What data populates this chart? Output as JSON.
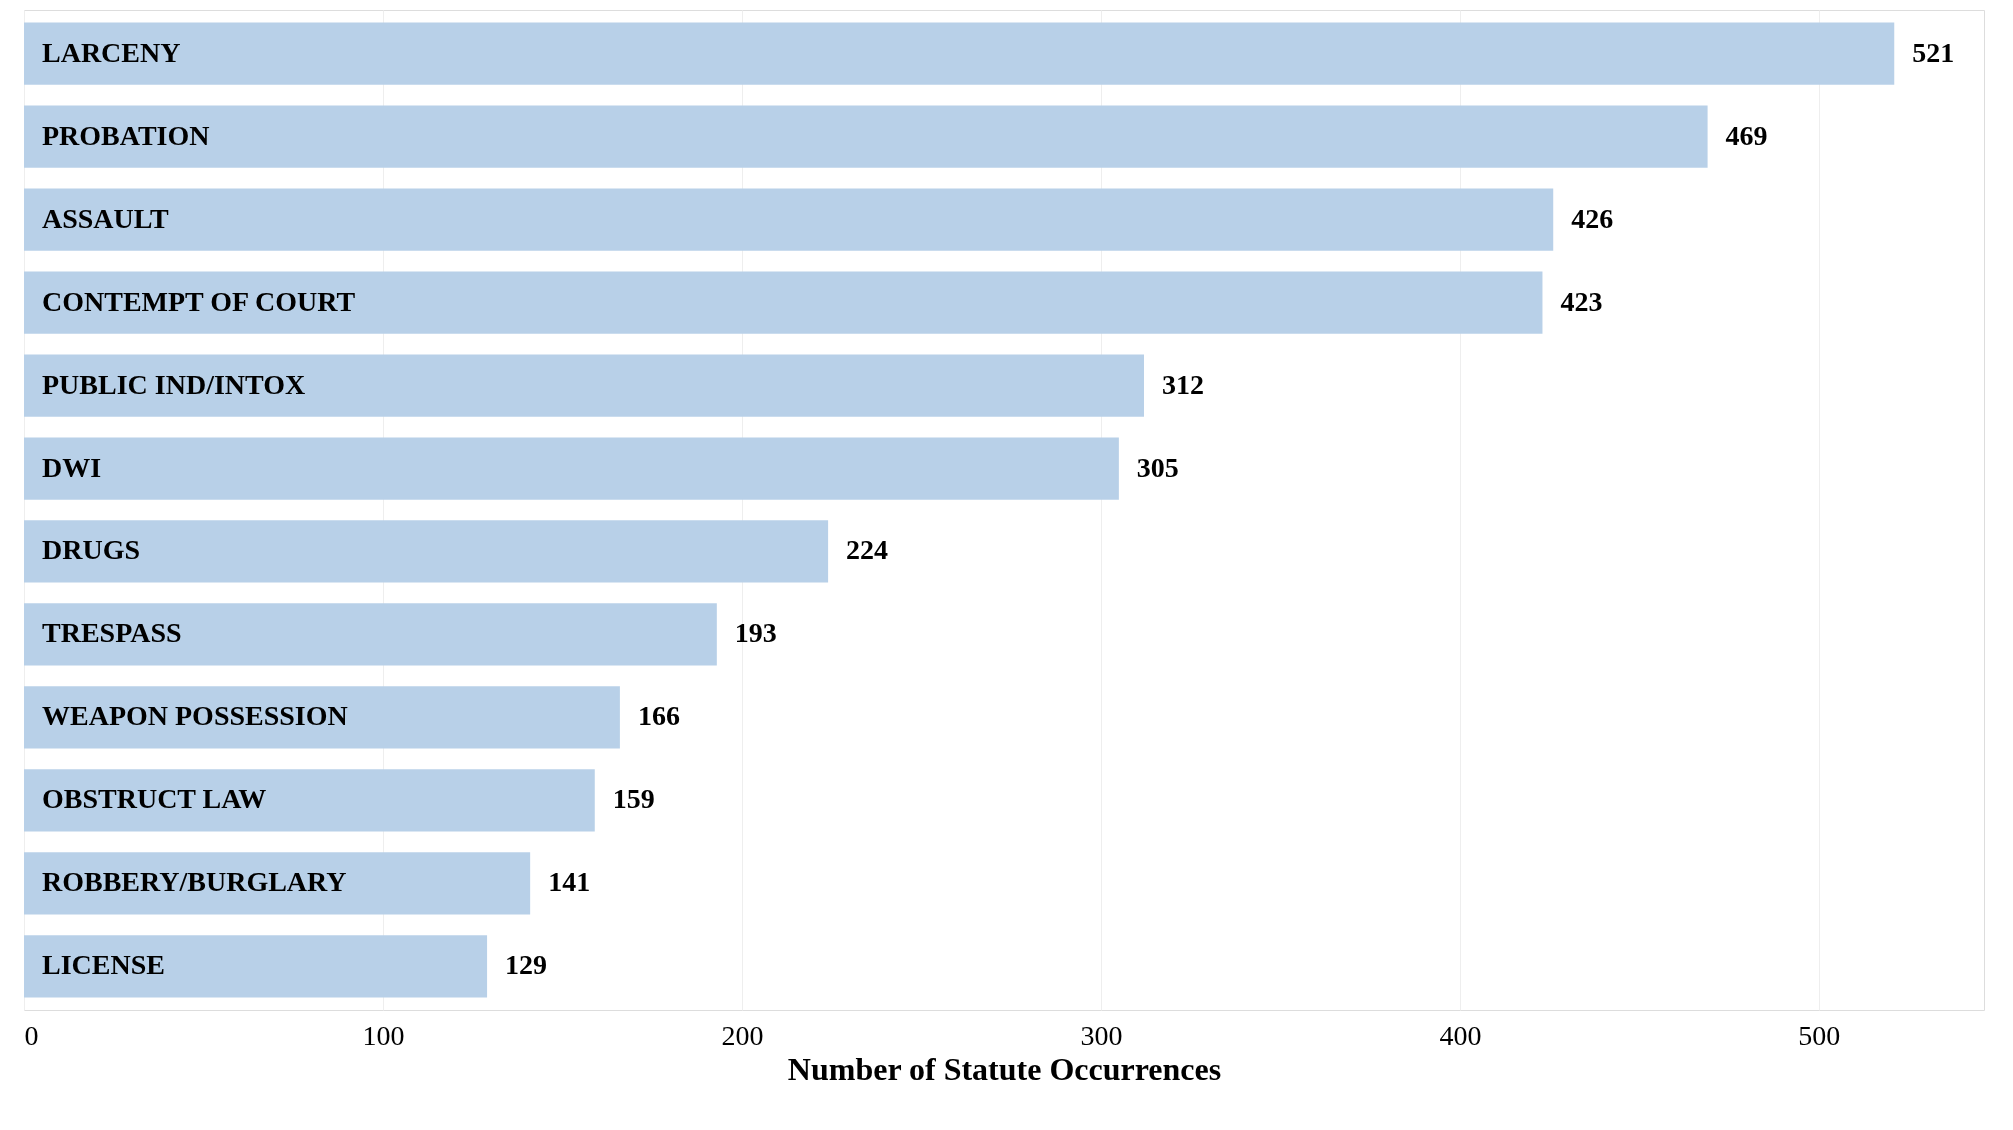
{
  "chart_data": {
    "type": "bar",
    "orientation": "horizontal",
    "xlabel": "Number of Statute Occurrences",
    "categories": [
      "LARCENY",
      "PROBATION",
      "ASSAULT",
      "CONTEMPT OF COURT",
      "PUBLIC IND/INTOX",
      "DWI",
      "DRUGS",
      "TRESPASS",
      "WEAPON POSSESSION",
      "OBSTRUCT LAW",
      "ROBBERY/BURGLARY",
      "LICENSE"
    ],
    "values": [
      521,
      469,
      426,
      423,
      312,
      305,
      224,
      193,
      166,
      159,
      141,
      129
    ],
    "color": "#b8d0e8",
    "data_labels": true,
    "xlim": [
      0,
      546
    ],
    "xticks": [
      0,
      100,
      200,
      300,
      400,
      500
    ],
    "grid": "x"
  }
}
